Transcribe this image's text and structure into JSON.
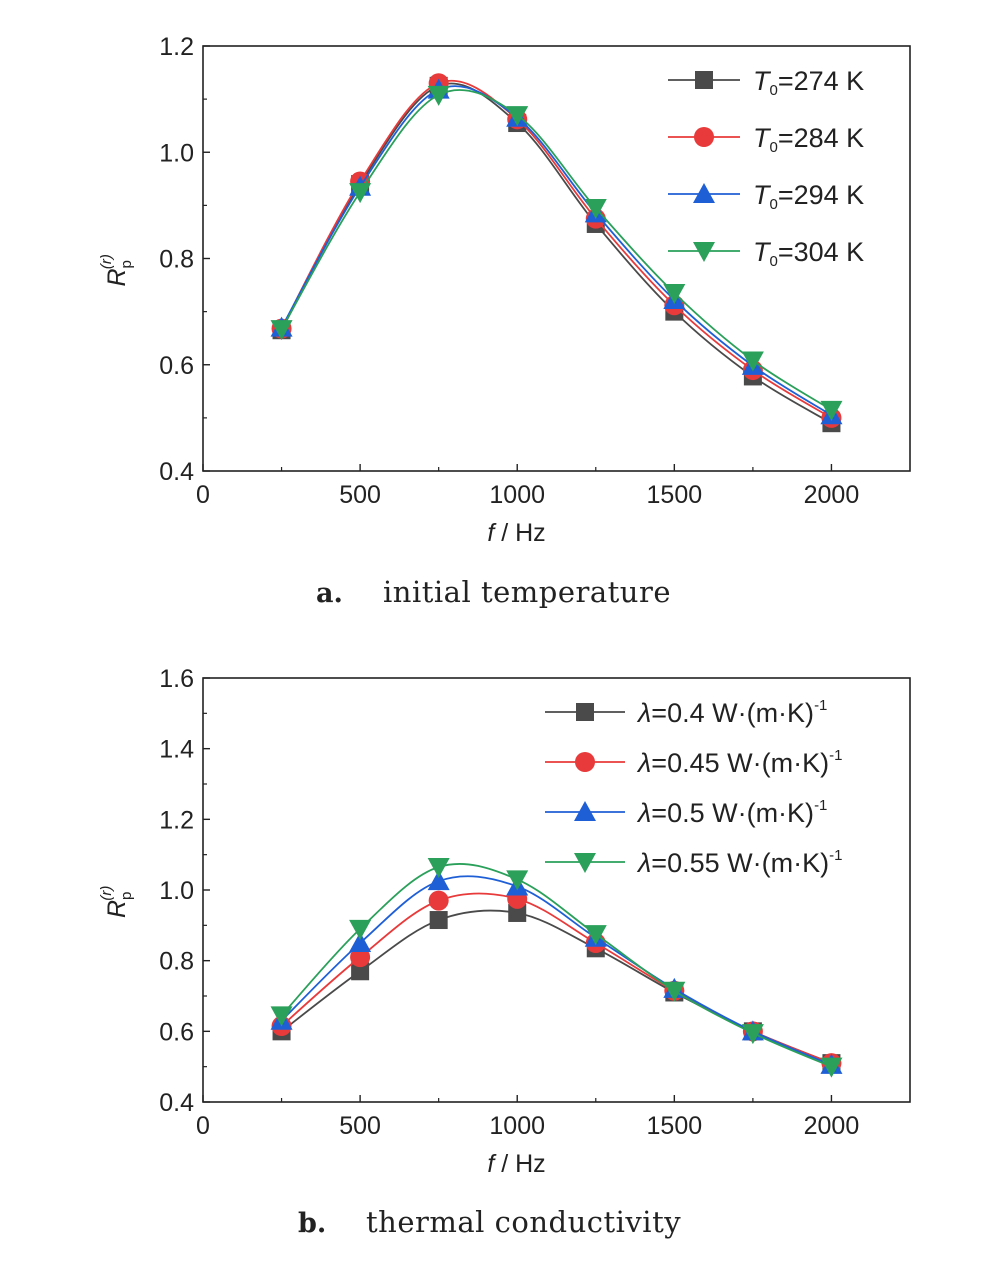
{
  "panels": [
    {
      "caption": {
        "letter": "a.",
        "text": "initial temperature"
      },
      "chart_data": {
        "type": "line",
        "xlabel_var": "f",
        "xlabel_unit": " / Hz",
        "ylabel_var": "R",
        "ylabel_sub": "p",
        "ylabel_sup": "(r)",
        "xlim": [
          0,
          2250
        ],
        "ylim": [
          0.4,
          1.2
        ],
        "xticks": [
          0,
          500,
          1000,
          1500,
          2000
        ],
        "yticks": [
          0.4,
          0.6,
          0.8,
          1.0,
          1.2
        ],
        "ytick_labels": [
          "0.4",
          "0.6",
          "0.8",
          "1.0",
          "1.2"
        ],
        "legend_position": "top-right",
        "x": [
          250,
          500,
          750,
          1000,
          1250,
          1500,
          1750,
          2000
        ],
        "series": [
          {
            "name": "T0=274 K",
            "leg_var": "T",
            "leg_sub": "0",
            "leg_rest": "=274 K",
            "color": "#4a4a4a",
            "marker": "square",
            "values": [
              0.665,
              0.94,
              1.125,
              1.055,
              0.865,
              0.7,
              0.578,
              0.49
            ]
          },
          {
            "name": "T0=284 K",
            "leg_var": "T",
            "leg_sub": "0",
            "leg_rest": "=284 K",
            "color": "#e83a3a",
            "marker": "circle",
            "values": [
              0.668,
              0.945,
              1.13,
              1.062,
              0.875,
              0.712,
              0.59,
              0.5
            ]
          },
          {
            "name": "T0=294 K",
            "leg_var": "T",
            "leg_sub": "0",
            "leg_rest": "=294 K",
            "color": "#1f5fd6",
            "marker": "triangle-up",
            "values": [
              0.67,
              0.935,
              1.118,
              1.065,
              0.885,
              0.722,
              0.598,
              0.505
            ]
          },
          {
            "name": "T0=304 K",
            "leg_var": "T",
            "leg_sub": "0",
            "leg_rest": "=304 K",
            "color": "#2aa05a",
            "marker": "triangle-down",
            "values": [
              0.667,
              0.925,
              1.108,
              1.07,
              0.895,
              0.735,
              0.608,
              0.515
            ]
          }
        ]
      }
    },
    {
      "caption": {
        "letter": "b.",
        "text": "thermal conductivity"
      },
      "chart_data": {
        "type": "line",
        "xlabel_var": "f",
        "xlabel_unit": " / Hz",
        "ylabel_var": "R",
        "ylabel_sub": "p",
        "ylabel_sup": "(r)",
        "xlim": [
          0,
          2250
        ],
        "ylim": [
          0.4,
          1.6
        ],
        "xticks": [
          0,
          500,
          1000,
          1500,
          2000
        ],
        "yticks": [
          0.4,
          0.6,
          0.8,
          1.0,
          1.2,
          1.4,
          1.6
        ],
        "ytick_labels": [
          "0.4",
          "0.6",
          "0.8",
          "1.0",
          "1.2",
          "1.4",
          "1.6"
        ],
        "legend_position": "top-right",
        "x": [
          250,
          500,
          750,
          1000,
          1250,
          1500,
          1750,
          2000
        ],
        "series": [
          {
            "name": "λ=0.4 W·(m·K)-1",
            "leg_var": "λ",
            "leg_rest": "=0.4 W·(m·K)",
            "leg_sup": "-1",
            "color": "#4a4a4a",
            "marker": "square",
            "values": [
              0.6,
              0.77,
              0.915,
              0.935,
              0.835,
              0.71,
              0.6,
              0.51
            ]
          },
          {
            "name": "λ=0.45 W·(m·K)-1",
            "leg_var": "λ",
            "leg_rest": "=0.45 W·(m·K)",
            "leg_sup": "-1",
            "color": "#e83a3a",
            "marker": "circle",
            "values": [
              0.615,
              0.81,
              0.97,
              0.975,
              0.85,
              0.715,
              0.6,
              0.51
            ]
          },
          {
            "name": "λ=0.5 W·(m·K)-1",
            "leg_var": "λ",
            "leg_rest": "=0.5 W·(m·K)",
            "leg_sup": "-1",
            "color": "#1f5fd6",
            "marker": "triangle-up",
            "values": [
              0.63,
              0.85,
              1.025,
              1.01,
              0.865,
              0.72,
              0.6,
              0.505
            ]
          },
          {
            "name": "λ=0.55 W·(m·K)-1",
            "leg_var": "λ",
            "leg_rest": "=0.55 W·(m·K)",
            "leg_sup": "-1",
            "color": "#2aa05a",
            "marker": "triangle-down",
            "values": [
              0.645,
              0.89,
              1.065,
              1.03,
              0.875,
              0.715,
              0.595,
              0.5
            ]
          }
        ]
      }
    }
  ]
}
